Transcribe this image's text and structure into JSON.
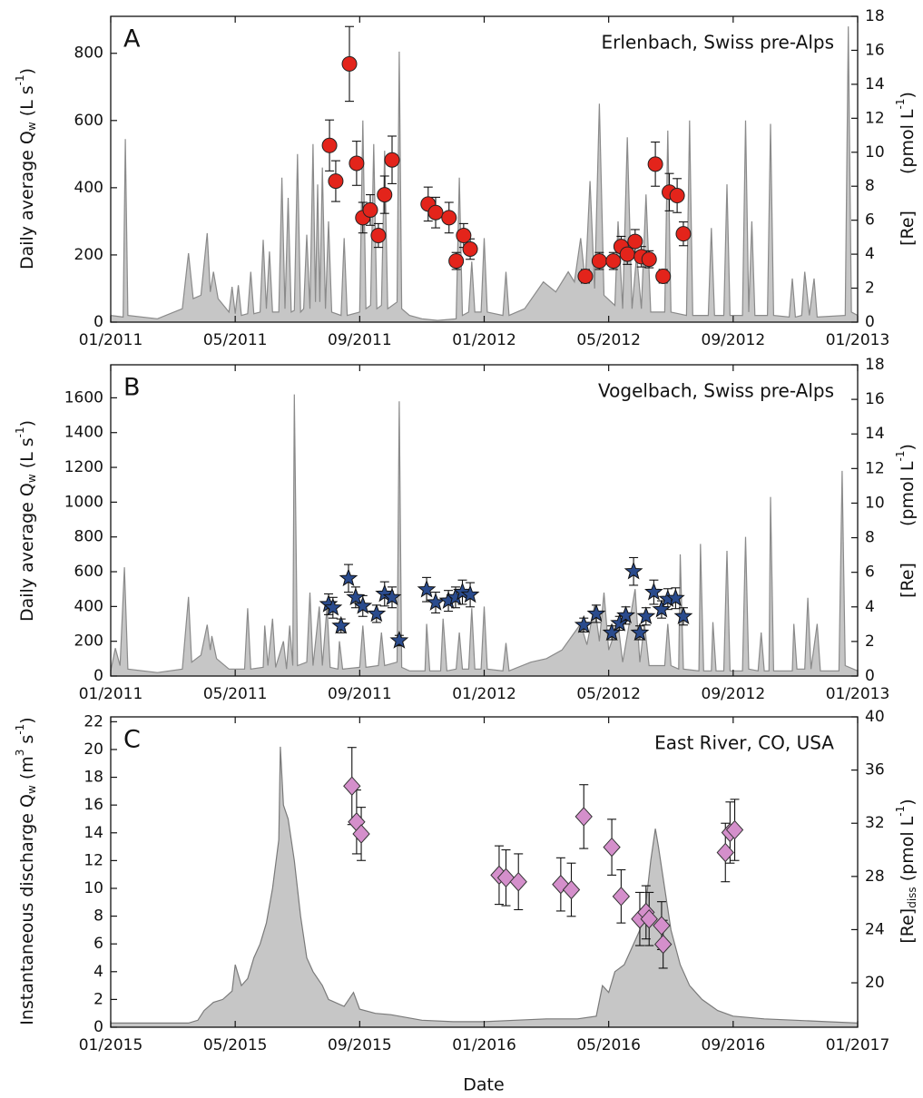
{
  "chart_data": [
    {
      "type": "combo",
      "panel_label": "A",
      "site": "Erlenbach, Swiss pre-Alps",
      "ylabel": [
        "Daily average Q",
        "w",
        " (L s",
        "-1",
        ")"
      ],
      "y2label": [
        "[Re]",
        "(pmol L",
        "-1",
        ")"
      ],
      "xlim": [
        0,
        24
      ],
      "xticks": [
        {
          "value": 0,
          "label": "01/2011"
        },
        {
          "value": 4,
          "label": "05/2011"
        },
        {
          "value": 8,
          "label": "09/2011"
        },
        {
          "value": 12,
          "label": "01/2012"
        },
        {
          "value": 16,
          "label": "05/2012"
        },
        {
          "value": 20,
          "label": "09/2012"
        },
        {
          "value": 24,
          "label": "01/2013"
        }
      ],
      "ylim": [
        0,
        910
      ],
      "yticks": [
        0,
        200,
        400,
        600,
        800
      ],
      "y2lim": [
        0,
        18
      ],
      "y2ticks": [
        0,
        2,
        4,
        6,
        8,
        10,
        12,
        14,
        16,
        18
      ],
      "series": [
        {
          "type": "area",
          "color": "#c6c6c6",
          "line_color": "#8a8a8a",
          "x": [
            0,
            0.4,
            0.47,
            0.55,
            1.5,
            2.3,
            2.5,
            2.65,
            2.9,
            3.1,
            3.2,
            3.3,
            3.45,
            3.8,
            3.9,
            4.0,
            4.1,
            4.2,
            4.4,
            4.5,
            4.6,
            4.8,
            4.9,
            5.0,
            5.1,
            5.2,
            5.4,
            5.5,
            5.6,
            5.7,
            5.8,
            5.9,
            6.0,
            6.1,
            6.2,
            6.3,
            6.4,
            6.5,
            6.58,
            6.65,
            6.72,
            6.8,
            6.9,
            7.0,
            7.1,
            7.4,
            7.5,
            7.6,
            8.0,
            8.1,
            8.2,
            8.35,
            8.45,
            8.55,
            8.7,
            8.8,
            8.9,
            9.2,
            9.27,
            9.35,
            9.6,
            10,
            10.5,
            11.1,
            11.2,
            11.3,
            11.5,
            11.6,
            11.7,
            11.9,
            12.0,
            12.1,
            12.6,
            12.7,
            12.8,
            13.3,
            13.9,
            14.3,
            14.7,
            14.9,
            15.1,
            15.25,
            15.4,
            15.55,
            15.7,
            15.85,
            16.2,
            16.3,
            16.45,
            16.6,
            16.75,
            16.9,
            17.05,
            17.2,
            17.35,
            17.8,
            17.9,
            18.0,
            18.5,
            18.6,
            18.7,
            19.2,
            19.3,
            19.4,
            19.7,
            19.8,
            19.9,
            20.3,
            20.4,
            20.5,
            20.6,
            20.7,
            21.1,
            21.2,
            21.3,
            21.8,
            21.9,
            22.0,
            22.2,
            22.3,
            22.45,
            22.6,
            22.7,
            23.6,
            23.7,
            23.8,
            24
          ],
          "values": [
            20,
            15,
            545,
            20,
            10,
            40,
            205,
            70,
            80,
            265,
            90,
            150,
            70,
            30,
            105,
            25,
            110,
            20,
            25,
            150,
            25,
            30,
            245,
            40,
            210,
            30,
            30,
            430,
            40,
            370,
            30,
            35,
            500,
            30,
            40,
            260,
            40,
            530,
            60,
            410,
            60,
            460,
            40,
            300,
            30,
            20,
            250,
            20,
            30,
            600,
            40,
            50,
            530,
            40,
            50,
            510,
            40,
            60,
            805,
            40,
            20,
            10,
            5,
            10,
            430,
            20,
            30,
            180,
            30,
            30,
            250,
            30,
            20,
            150,
            20,
            40,
            120,
            90,
            150,
            120,
            250,
            120,
            420,
            100,
            650,
            80,
            50,
            300,
            40,
            550,
            40,
            200,
            40,
            380,
            30,
            30,
            570,
            30,
            20,
            600,
            20,
            20,
            280,
            20,
            20,
            410,
            20,
            20,
            600,
            30,
            300,
            20,
            20,
            590,
            20,
            15,
            130,
            15,
            20,
            150,
            20,
            130,
            15,
            20,
            880,
            30,
            20
          ]
        },
        {
          "type": "scatter",
          "axis": "y2",
          "marker": "circle",
          "color": "#e3241b",
          "x": [
            7.03,
            7.23,
            7.67,
            7.9,
            8.1,
            8.34,
            8.6,
            8.8,
            9.04,
            10.2,
            10.44,
            10.87,
            11.1,
            11.34,
            11.55,
            15.25,
            15.7,
            16.15,
            16.4,
            16.6,
            16.85,
            17.05,
            17.3,
            17.5,
            17.75,
            17.95,
            18.2,
            18.4
          ],
          "values": [
            10.4,
            8.3,
            15.2,
            9.35,
            6.15,
            6.6,
            5.1,
            7.5,
            9.55,
            6.95,
            6.45,
            6.15,
            3.6,
            5.1,
            4.3,
            2.7,
            3.6,
            3.6,
            4.45,
            4.0,
            4.75,
            3.85,
            3.7,
            9.3,
            2.7,
            7.65,
            7.45,
            5.2
          ],
          "errors": [
            1.5,
            1.2,
            2.2,
            1.3,
            0.9,
            0.9,
            0.7,
            1.1,
            1.4,
            1.0,
            0.9,
            0.9,
            0.5,
            0.7,
            0.6,
            0.4,
            0.5,
            0.5,
            0.6,
            0.6,
            0.7,
            0.6,
            0.5,
            1.3,
            0.4,
            1.1,
            1.0,
            0.7
          ]
        }
      ]
    },
    {
      "type": "combo",
      "panel_label": "B",
      "site": "Vogelbach, Swiss pre-Alps",
      "ylabel": [
        "Daily average Q",
        "w",
        " (L s",
        "-1",
        ")"
      ],
      "y2label": [
        "[Re]",
        "(pmol L",
        "-1",
        ")"
      ],
      "xlim": [
        0,
        24
      ],
      "xticks": [
        {
          "value": 0,
          "label": "01/2011"
        },
        {
          "value": 4,
          "label": "05/2011"
        },
        {
          "value": 8,
          "label": "09/2011"
        },
        {
          "value": 12,
          "label": "01/2012"
        },
        {
          "value": 16,
          "label": "05/2012"
        },
        {
          "value": 20,
          "label": "09/2012"
        },
        {
          "value": 24,
          "label": "01/2013"
        }
      ],
      "ylim": [
        0,
        1790
      ],
      "yticks": [
        0,
        200,
        400,
        600,
        800,
        1000,
        1200,
        1400,
        1600
      ],
      "y2lim": [
        0,
        18
      ],
      "y2ticks": [
        0,
        2,
        4,
        6,
        8,
        10,
        12,
        14,
        16,
        18
      ],
      "series": [
        {
          "type": "area",
          "color": "#c6c6c6",
          "line_color": "#8a8a8a",
          "x": [
            0,
            0.15,
            0.3,
            0.44,
            0.55,
            1.5,
            2.3,
            2.5,
            2.6,
            2.9,
            3.1,
            3.2,
            3.25,
            3.4,
            3.8,
            4.3,
            4.4,
            4.5,
            4.9,
            4.95,
            5.05,
            5.2,
            5.3,
            5.55,
            5.65,
            5.75,
            5.85,
            5.9,
            6.0,
            6.3,
            6.4,
            6.5,
            6.7,
            6.8,
            6.95,
            7.05,
            7.3,
            7.35,
            7.45,
            8.0,
            8.1,
            8.2,
            8.6,
            8.7,
            8.8,
            9.2,
            9.27,
            9.35,
            9.6,
            10.1,
            10.15,
            10.25,
            10.6,
            10.68,
            10.8,
            11.1,
            11.2,
            11.3,
            11.5,
            11.6,
            11.7,
            11.9,
            12.0,
            12.1,
            12.6,
            12.7,
            12.8,
            13.5,
            14.0,
            14.5,
            15.1,
            15.3,
            15.55,
            15.7,
            15.85,
            16.0,
            16.3,
            16.45,
            16.85,
            17.0,
            17.15,
            17.3,
            17.8,
            17.9,
            18.0,
            18.25,
            18.3,
            18.4,
            18.9,
            18.95,
            19.05,
            19.3,
            19.35,
            19.45,
            19.7,
            19.8,
            19.9,
            20.3,
            20.4,
            20.5,
            20.8,
            20.9,
            21.0,
            21.15,
            21.2,
            21.3,
            21.9,
            21.95,
            22.05,
            22.3,
            22.4,
            22.5,
            22.7,
            22.8,
            23.4,
            23.5,
            23.6,
            24
          ],
          "values": [
            30,
            160,
            60,
            625,
            40,
            20,
            40,
            455,
            80,
            120,
            295,
            150,
            230,
            100,
            40,
            40,
            390,
            40,
            50,
            290,
            60,
            330,
            50,
            200,
            40,
            290,
            60,
            1620,
            60,
            80,
            480,
            60,
            400,
            60,
            400,
            50,
            40,
            200,
            40,
            50,
            290,
            50,
            60,
            250,
            60,
            80,
            1580,
            50,
            30,
            30,
            300,
            30,
            30,
            330,
            30,
            40,
            250,
            40,
            40,
            390,
            40,
            40,
            400,
            40,
            30,
            190,
            30,
            80,
            100,
            150,
            300,
            180,
            410,
            200,
            480,
            150,
            300,
            80,
            500,
            80,
            300,
            60,
            60,
            300,
            60,
            40,
            700,
            40,
            30,
            760,
            30,
            30,
            310,
            30,
            30,
            720,
            30,
            30,
            800,
            40,
            30,
            250,
            30,
            30,
            1030,
            30,
            30,
            300,
            40,
            40,
            450,
            40,
            300,
            30,
            30,
            1180,
            60,
            30
          ]
        },
        {
          "type": "scatter",
          "axis": "y2",
          "marker": "star",
          "color": "#2a4b8d",
          "x": [
            7.0,
            7.14,
            7.4,
            7.64,
            7.87,
            8.1,
            8.54,
            8.8,
            9.04,
            9.27,
            10.15,
            10.44,
            10.85,
            11.08,
            11.3,
            11.55,
            15.2,
            15.6,
            16.1,
            16.35,
            16.55,
            16.8,
            17.0,
            17.2,
            17.45,
            17.7,
            17.9,
            18.15,
            18.4
          ],
          "values": [
            4.15,
            3.95,
            2.9,
            5.65,
            4.55,
            4.05,
            3.6,
            4.75,
            4.55,
            2.05,
            5.0,
            4.25,
            4.35,
            4.55,
            4.85,
            4.7,
            2.95,
            3.6,
            2.5,
            3.05,
            3.5,
            6.05,
            2.5,
            3.45,
            4.85,
            3.85,
            4.45,
            4.5,
            3.45
          ],
          "errors": [
            0.6,
            0.6,
            0.4,
            0.8,
            0.6,
            0.6,
            0.5,
            0.7,
            0.6,
            0.3,
            0.7,
            0.6,
            0.6,
            0.6,
            0.7,
            0.7,
            0.4,
            0.5,
            0.4,
            0.4,
            0.5,
            0.8,
            0.4,
            0.5,
            0.7,
            0.5,
            0.6,
            0.6,
            0.5
          ]
        }
      ]
    },
    {
      "type": "combo",
      "panel_label": "C",
      "site": "East River, CO, USA",
      "ylabel": [
        "Instantaneous discharge Q",
        "w",
        " (m",
        "3",
        " s",
        "-1",
        ")"
      ],
      "y2label": [
        "[Re]",
        "diss",
        " (pmol L",
        "-1",
        ")"
      ],
      "xlabel": "Date",
      "xlim": [
        0,
        24
      ],
      "xticks": [
        {
          "value": 0,
          "label": "01/2015"
        },
        {
          "value": 4,
          "label": "05/2015"
        },
        {
          "value": 8,
          "label": "09/2015"
        },
        {
          "value": 12,
          "label": "01/2016"
        },
        {
          "value": 16,
          "label": "05/2016"
        },
        {
          "value": 20,
          "label": "09/2016"
        },
        {
          "value": 24,
          "label": "01/2017"
        }
      ],
      "ylim": [
        0,
        22.35
      ],
      "yticks": [
        0,
        2,
        4,
        6,
        8,
        10,
        12,
        14,
        16,
        18,
        20,
        22
      ],
      "y2lim": [
        16.66,
        40
      ],
      "y2ticks": [
        20,
        24,
        28,
        32,
        36,
        40
      ],
      "series": [
        {
          "type": "area",
          "color": "#c6c6c6",
          "line_color": "#7a7a7a",
          "x": [
            0,
            2.5,
            2.8,
            3.0,
            3.3,
            3.6,
            3.9,
            4.0,
            4.2,
            4.4,
            4.6,
            4.8,
            5.0,
            5.2,
            5.4,
            5.45,
            5.55,
            5.7,
            5.9,
            6.1,
            6.3,
            6.5,
            6.8,
            7.0,
            7.5,
            7.8,
            8.0,
            8.5,
            9.0,
            10,
            11,
            12,
            13,
            14,
            15,
            15.6,
            15.8,
            16.0,
            16.2,
            16.5,
            16.8,
            17.0,
            17.2,
            17.35,
            17.5,
            17.6,
            17.8,
            18.0,
            18.3,
            18.6,
            19.0,
            19.5,
            20,
            21,
            22,
            23,
            24
          ],
          "values": [
            0.3,
            0.3,
            0.5,
            1.2,
            1.8,
            2.0,
            2.6,
            4.5,
            3.0,
            3.5,
            5.0,
            6.0,
            7.5,
            10,
            13.5,
            20.2,
            16,
            15,
            12,
            8,
            5,
            4,
            3,
            2,
            1.5,
            2.5,
            1.3,
            1.0,
            0.9,
            0.5,
            0.4,
            0.4,
            0.5,
            0.6,
            0.6,
            0.8,
            3.0,
            2.5,
            4.0,
            4.5,
            6.0,
            7.0,
            9.0,
            12,
            14.3,
            13,
            10,
            7.0,
            4.5,
            3.0,
            2.0,
            1.2,
            0.8,
            0.6,
            0.5,
            0.4,
            0.3
          ]
        },
        {
          "type": "scatter",
          "axis": "y2",
          "marker": "diamond",
          "color": "#d48fcb",
          "x": [
            7.75,
            7.9,
            8.05,
            12.48,
            12.7,
            13.1,
            14.46,
            14.8,
            15.2,
            16.1,
            16.4,
            17.0,
            17.2,
            17.3,
            17.7,
            17.75,
            19.75,
            19.9,
            20.05
          ],
          "values": [
            34.8,
            32.1,
            31.2,
            28.1,
            27.9,
            27.6,
            27.4,
            27.0,
            32.5,
            30.2,
            26.5,
            24.8,
            25.3,
            24.8,
            24.3,
            22.9,
            29.8,
            31.3,
            31.5
          ],
          "errors": [
            2.9,
            2.4,
            2.0,
            2.2,
            2.1,
            2.1,
            2.0,
            2.0,
            2.4,
            2.1,
            2.0,
            2.0,
            2.0,
            2.0,
            1.8,
            1.8,
            2.2,
            2.3,
            2.3
          ]
        }
      ]
    }
  ]
}
